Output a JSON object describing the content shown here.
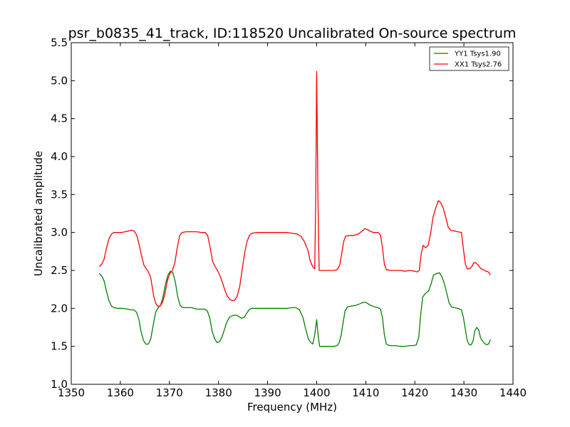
{
  "chart_data": {
    "type": "line",
    "title": "psr_b0835_41_track, ID:118520 Uncalibrated On-source spectrum",
    "xlabel": "Frequency (MHz)",
    "ylabel": "Uncalibrated amplitude",
    "xlim": [
      1350,
      1440
    ],
    "ylim": [
      1.0,
      5.5
    ],
    "xticks": [
      1350,
      1360,
      1370,
      1380,
      1390,
      1400,
      1410,
      1420,
      1430,
      1440
    ],
    "xtick_labels": [
      "1350",
      "1360",
      "1370",
      "1380",
      "1390",
      "1400",
      "1410",
      "1420",
      "1430",
      "1440"
    ],
    "yticks": [
      1.0,
      1.5,
      2.0,
      2.5,
      3.0,
      3.5,
      4.0,
      4.5,
      5.0,
      5.5
    ],
    "ytick_labels": [
      "1.0",
      "1.5",
      "2.0",
      "2.5",
      "3.0",
      "3.5",
      "4.0",
      "4.5",
      "5.0",
      "5.5"
    ],
    "grid": false,
    "legend_position": "top-right",
    "series": [
      {
        "name": "YY1 Tsys1.90",
        "color": "#008000",
        "points": [
          [
            1355.7,
            2.46
          ],
          [
            1356.2,
            2.43
          ],
          [
            1356.7,
            2.36
          ],
          [
            1357.2,
            2.22
          ],
          [
            1357.7,
            2.1
          ],
          [
            1358.2,
            2.03
          ],
          [
            1358.7,
            2.01
          ],
          [
            1359.5,
            2.0
          ],
          [
            1360.5,
            2.0
          ],
          [
            1361.5,
            1.99
          ],
          [
            1362.3,
            1.98
          ],
          [
            1362.8,
            1.98
          ],
          [
            1363.3,
            1.95
          ],
          [
            1363.8,
            1.85
          ],
          [
            1364.2,
            1.7
          ],
          [
            1364.7,
            1.58
          ],
          [
            1365.2,
            1.53
          ],
          [
            1365.7,
            1.53
          ],
          [
            1366.2,
            1.6
          ],
          [
            1366.7,
            1.78
          ],
          [
            1367.2,
            1.95
          ],
          [
            1367.7,
            2.01
          ],
          [
            1368.2,
            2.04
          ],
          [
            1368.7,
            2.15
          ],
          [
            1369.2,
            2.32
          ],
          [
            1369.7,
            2.44
          ],
          [
            1370.2,
            2.49
          ],
          [
            1370.7,
            2.47
          ],
          [
            1371.2,
            2.35
          ],
          [
            1371.7,
            2.15
          ],
          [
            1372.2,
            2.04
          ],
          [
            1372.7,
            2.01
          ],
          [
            1373.5,
            2.01
          ],
          [
            1374.5,
            2.01
          ],
          [
            1375.5,
            1.99
          ],
          [
            1376.5,
            1.99
          ],
          [
            1377.2,
            1.99
          ],
          [
            1377.7,
            1.97
          ],
          [
            1378.2,
            1.88
          ],
          [
            1378.7,
            1.7
          ],
          [
            1379.2,
            1.6
          ],
          [
            1379.7,
            1.55
          ],
          [
            1380.2,
            1.56
          ],
          [
            1380.7,
            1.62
          ],
          [
            1381.2,
            1.72
          ],
          [
            1381.7,
            1.82
          ],
          [
            1382.2,
            1.88
          ],
          [
            1382.7,
            1.9
          ],
          [
            1383.2,
            1.91
          ],
          [
            1383.7,
            1.91
          ],
          [
            1384.2,
            1.89
          ],
          [
            1384.7,
            1.87
          ],
          [
            1385.2,
            1.88
          ],
          [
            1385.7,
            1.93
          ],
          [
            1386.2,
            1.98
          ],
          [
            1386.7,
            2.0
          ],
          [
            1388.0,
            2.0
          ],
          [
            1390.0,
            2.0
          ],
          [
            1392.0,
            2.0
          ],
          [
            1394.0,
            2.0
          ],
          [
            1395.0,
            2.01
          ],
          [
            1395.8,
            2.01
          ],
          [
            1396.5,
            1.98
          ],
          [
            1397.2,
            1.88
          ],
          [
            1397.8,
            1.72
          ],
          [
            1398.3,
            1.6
          ],
          [
            1398.8,
            1.55
          ],
          [
            1399.2,
            1.53
          ],
          [
            1399.6,
            1.65
          ],
          [
            1400.0,
            1.85
          ],
          [
            1400.3,
            1.65
          ],
          [
            1400.6,
            1.5
          ],
          [
            1401.5,
            1.5
          ],
          [
            1402.5,
            1.5
          ],
          [
            1403.5,
            1.5
          ],
          [
            1404.2,
            1.51
          ],
          [
            1404.6,
            1.55
          ],
          [
            1405.0,
            1.65
          ],
          [
            1405.4,
            1.82
          ],
          [
            1405.8,
            1.97
          ],
          [
            1406.3,
            2.02
          ],
          [
            1407.0,
            2.03
          ],
          [
            1408.0,
            2.04
          ],
          [
            1408.8,
            2.06
          ],
          [
            1409.5,
            2.08
          ],
          [
            1410.0,
            2.08
          ],
          [
            1410.5,
            2.06
          ],
          [
            1411.0,
            2.04
          ],
          [
            1411.8,
            2.02
          ],
          [
            1412.5,
            2.01
          ],
          [
            1413.0,
            1.99
          ],
          [
            1413.4,
            1.88
          ],
          [
            1413.8,
            1.65
          ],
          [
            1414.2,
            1.53
          ],
          [
            1414.8,
            1.51
          ],
          [
            1416.0,
            1.51
          ],
          [
            1417.0,
            1.5
          ],
          [
            1418.0,
            1.5
          ],
          [
            1419.0,
            1.51
          ],
          [
            1419.8,
            1.51
          ],
          [
            1420.3,
            1.52
          ],
          [
            1420.8,
            1.62
          ],
          [
            1421.2,
            1.92
          ],
          [
            1421.6,
            2.15
          ],
          [
            1422.2,
            2.2
          ],
          [
            1422.8,
            2.23
          ],
          [
            1423.3,
            2.32
          ],
          [
            1423.8,
            2.44
          ],
          [
            1424.5,
            2.46
          ],
          [
            1425.0,
            2.47
          ],
          [
            1425.5,
            2.42
          ],
          [
            1426.0,
            2.33
          ],
          [
            1426.5,
            2.2
          ],
          [
            1427.0,
            2.07
          ],
          [
            1427.5,
            2.02
          ],
          [
            1428.0,
            2.01
          ],
          [
            1428.8,
            2.0
          ],
          [
            1429.5,
            1.98
          ],
          [
            1429.9,
            1.88
          ],
          [
            1430.3,
            1.72
          ],
          [
            1430.7,
            1.57
          ],
          [
            1431.1,
            1.52
          ],
          [
            1431.5,
            1.52
          ],
          [
            1431.9,
            1.58
          ],
          [
            1432.2,
            1.7
          ],
          [
            1432.6,
            1.75
          ],
          [
            1433.0,
            1.72
          ],
          [
            1433.4,
            1.61
          ],
          [
            1433.8,
            1.57
          ],
          [
            1434.2,
            1.54
          ],
          [
            1434.6,
            1.52
          ],
          [
            1435.0,
            1.53
          ],
          [
            1435.4,
            1.59
          ]
        ]
      },
      {
        "name": "XX1 Tsys2.76",
        "color": "#ff0000",
        "points": [
          [
            1355.7,
            2.55
          ],
          [
            1356.2,
            2.58
          ],
          [
            1356.7,
            2.65
          ],
          [
            1357.2,
            2.8
          ],
          [
            1357.7,
            2.92
          ],
          [
            1358.2,
            2.98
          ],
          [
            1358.7,
            3.0
          ],
          [
            1359.5,
            3.0
          ],
          [
            1360.3,
            3.0
          ],
          [
            1361.0,
            3.01
          ],
          [
            1361.7,
            3.02
          ],
          [
            1362.3,
            3.03
          ],
          [
            1362.8,
            3.02
          ],
          [
            1363.3,
            2.97
          ],
          [
            1363.8,
            2.85
          ],
          [
            1364.3,
            2.7
          ],
          [
            1364.8,
            2.57
          ],
          [
            1365.3,
            2.52
          ],
          [
            1365.8,
            2.47
          ],
          [
            1366.2,
            2.4
          ],
          [
            1366.5,
            2.28
          ],
          [
            1366.8,
            2.16
          ],
          [
            1367.2,
            2.07
          ],
          [
            1367.6,
            2.03
          ],
          [
            1368.1,
            2.03
          ],
          [
            1368.6,
            2.08
          ],
          [
            1369.1,
            2.2
          ],
          [
            1369.6,
            2.37
          ],
          [
            1370.1,
            2.46
          ],
          [
            1370.6,
            2.5
          ],
          [
            1371.1,
            2.6
          ],
          [
            1371.6,
            2.8
          ],
          [
            1372.1,
            2.96
          ],
          [
            1372.6,
            3.0
          ],
          [
            1373.5,
            3.01
          ],
          [
            1374.5,
            3.01
          ],
          [
            1375.5,
            3.01
          ],
          [
            1376.5,
            3.0
          ],
          [
            1377.3,
            3.0
          ],
          [
            1377.8,
            2.96
          ],
          [
            1378.3,
            2.8
          ],
          [
            1378.8,
            2.62
          ],
          [
            1379.3,
            2.55
          ],
          [
            1379.8,
            2.5
          ],
          [
            1380.3,
            2.43
          ],
          [
            1380.8,
            2.34
          ],
          [
            1381.3,
            2.24
          ],
          [
            1381.8,
            2.16
          ],
          [
            1382.3,
            2.12
          ],
          [
            1382.8,
            2.1
          ],
          [
            1383.3,
            2.11
          ],
          [
            1383.8,
            2.16
          ],
          [
            1384.3,
            2.28
          ],
          [
            1384.8,
            2.5
          ],
          [
            1385.3,
            2.72
          ],
          [
            1385.8,
            2.88
          ],
          [
            1386.3,
            2.96
          ],
          [
            1386.8,
            2.99
          ],
          [
            1388.0,
            3.0
          ],
          [
            1390.0,
            3.0
          ],
          [
            1392.0,
            3.0
          ],
          [
            1394.0,
            3.0
          ],
          [
            1395.0,
            2.99
          ],
          [
            1396.0,
            2.98
          ],
          [
            1396.8,
            2.95
          ],
          [
            1397.5,
            2.88
          ],
          [
            1398.2,
            2.77
          ],
          [
            1398.7,
            2.62
          ],
          [
            1399.2,
            2.55
          ],
          [
            1399.6,
            2.52
          ],
          [
            1399.8,
            3.4
          ],
          [
            1400.0,
            5.12
          ],
          [
            1400.25,
            3.5
          ],
          [
            1400.5,
            2.5
          ],
          [
            1401.5,
            2.5
          ],
          [
            1402.5,
            2.5
          ],
          [
            1403.5,
            2.5
          ],
          [
            1404.2,
            2.51
          ],
          [
            1404.7,
            2.57
          ],
          [
            1405.1,
            2.72
          ],
          [
            1405.5,
            2.88
          ],
          [
            1405.9,
            2.95
          ],
          [
            1406.5,
            2.96
          ],
          [
            1407.5,
            2.96
          ],
          [
            1408.5,
            2.98
          ],
          [
            1409.3,
            3.02
          ],
          [
            1409.8,
            3.05
          ],
          [
            1410.3,
            3.04
          ],
          [
            1410.8,
            3.02
          ],
          [
            1411.5,
            3.0
          ],
          [
            1412.5,
            3.0
          ],
          [
            1413.0,
            2.97
          ],
          [
            1413.4,
            2.8
          ],
          [
            1413.8,
            2.58
          ],
          [
            1414.2,
            2.51
          ],
          [
            1415.0,
            2.5
          ],
          [
            1416.0,
            2.5
          ],
          [
            1417.0,
            2.5
          ],
          [
            1418.0,
            2.49
          ],
          [
            1419.0,
            2.5
          ],
          [
            1420.0,
            2.49
          ],
          [
            1420.5,
            2.48
          ],
          [
            1420.9,
            2.5
          ],
          [
            1421.3,
            2.72
          ],
          [
            1421.7,
            2.83
          ],
          [
            1422.2,
            2.8
          ],
          [
            1422.7,
            2.83
          ],
          [
            1423.2,
            2.98
          ],
          [
            1423.7,
            3.2
          ],
          [
            1424.3,
            3.33
          ],
          [
            1424.8,
            3.42
          ],
          [
            1425.3,
            3.39
          ],
          [
            1425.8,
            3.32
          ],
          [
            1426.3,
            3.2
          ],
          [
            1426.8,
            3.07
          ],
          [
            1427.3,
            3.03
          ],
          [
            1428.0,
            3.02
          ],
          [
            1428.7,
            3.01
          ],
          [
            1429.5,
            3.0
          ],
          [
            1429.9,
            2.78
          ],
          [
            1430.3,
            2.58
          ],
          [
            1430.7,
            2.52
          ],
          [
            1431.1,
            2.52
          ],
          [
            1431.6,
            2.55
          ],
          [
            1432.0,
            2.6
          ],
          [
            1432.4,
            2.6
          ],
          [
            1432.9,
            2.57
          ],
          [
            1433.5,
            2.52
          ],
          [
            1434.0,
            2.51
          ],
          [
            1434.5,
            2.49
          ],
          [
            1435.0,
            2.48
          ],
          [
            1435.4,
            2.44
          ]
        ]
      }
    ]
  }
}
